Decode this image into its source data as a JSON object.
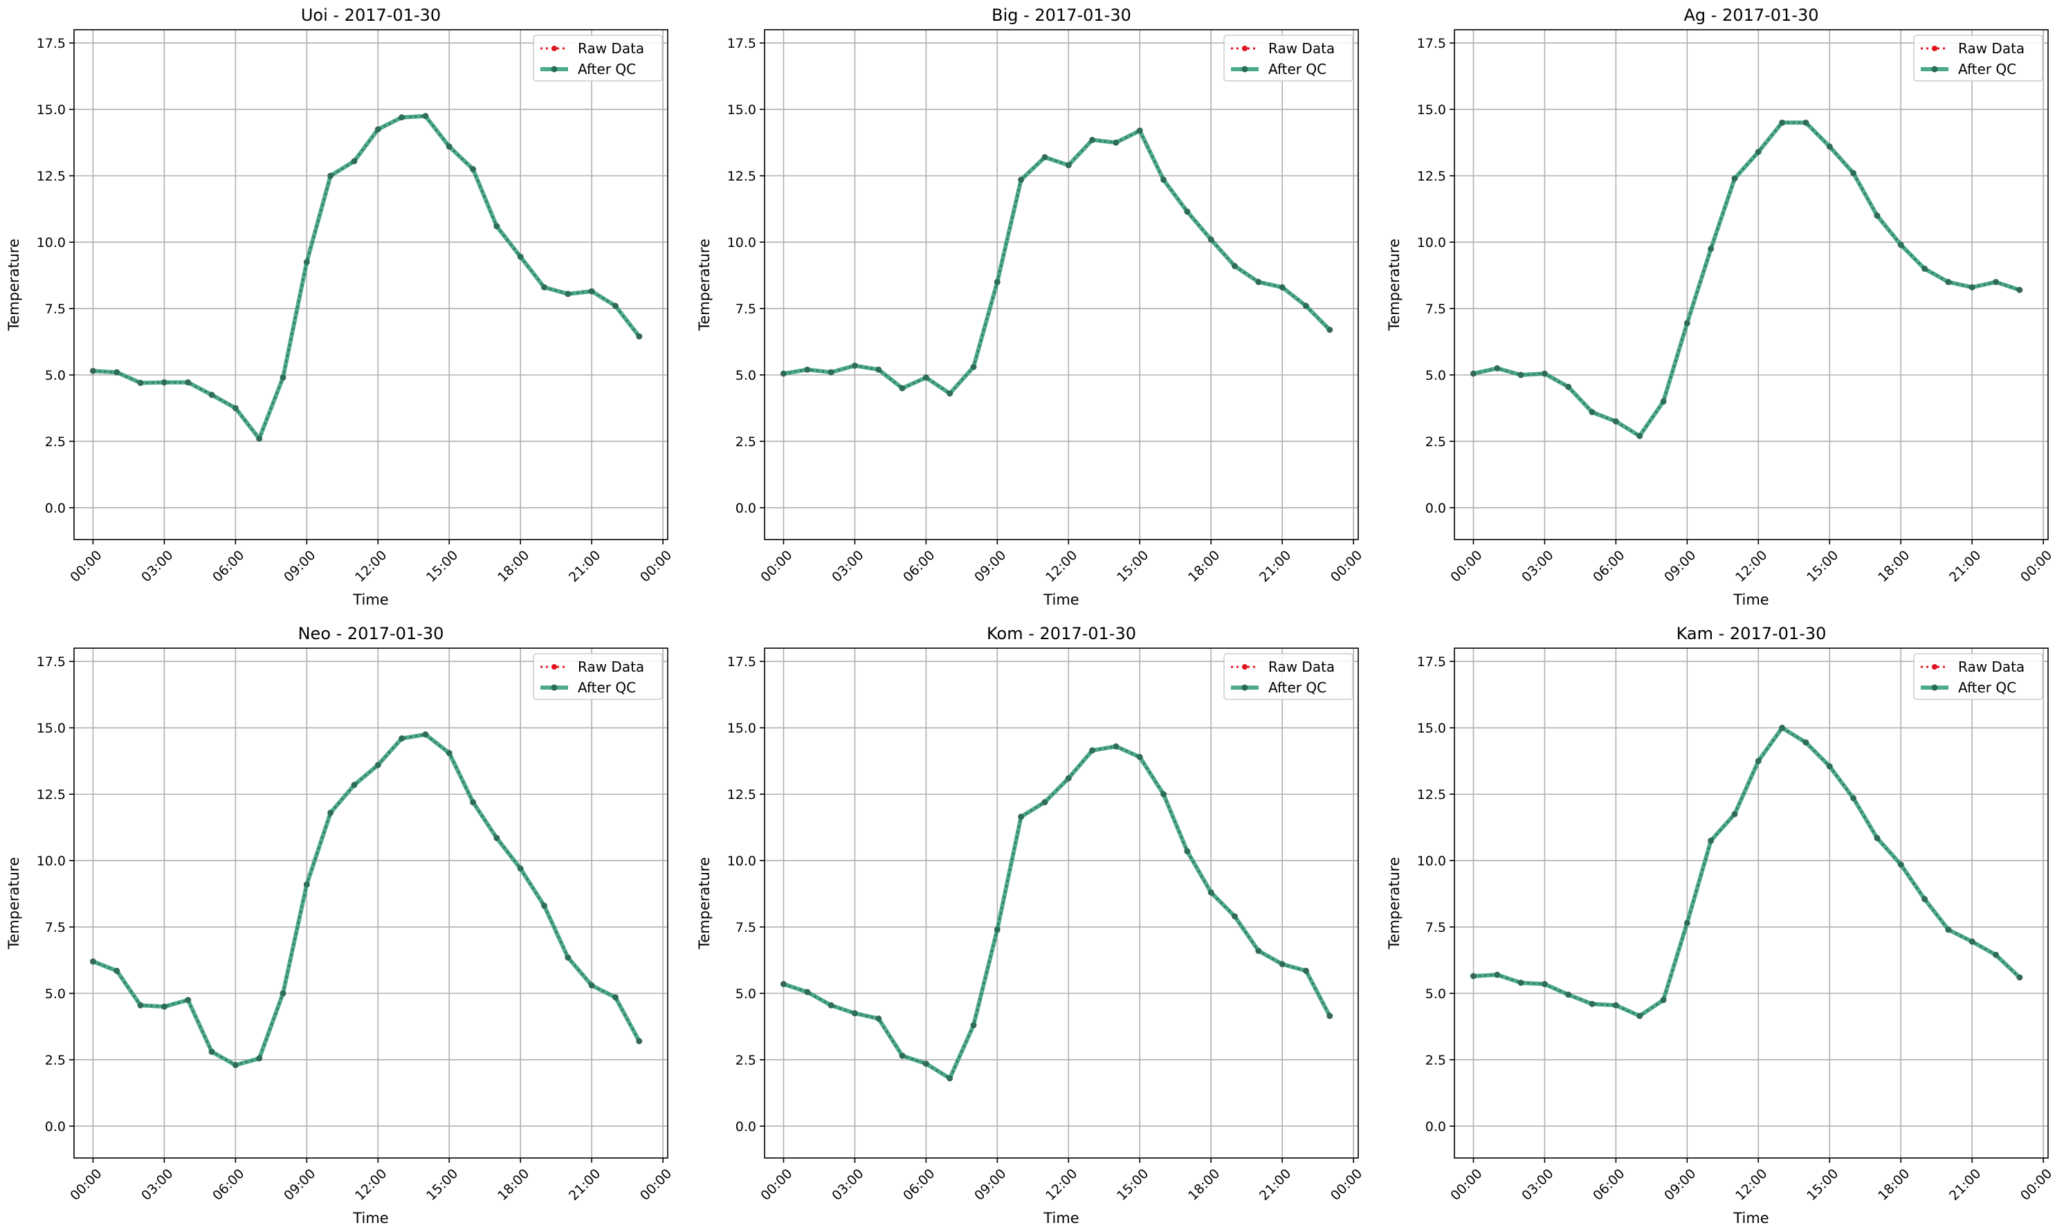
{
  "colors": {
    "raw": "#e0141e",
    "qc": "#2e9c78",
    "qc_marker": "#2a6b55",
    "grid": "#b0b0b0"
  },
  "chart_data": [
    {
      "type": "line",
      "title": "Uoi - 2017-01-30",
      "xlabel": "Time",
      "ylabel": "Temperature",
      "x_ticks": [
        "00:00",
        "03:00",
        "06:00",
        "09:00",
        "12:00",
        "15:00",
        "18:00",
        "21:00",
        "00:00"
      ],
      "y_ticks": [
        "0.0",
        "2.5",
        "5.0",
        "7.5",
        "10.0",
        "12.5",
        "15.0",
        "17.5"
      ],
      "ylim": [
        -1.2,
        18.0
      ],
      "grid": true,
      "legend": "top-right",
      "series": [
        {
          "name": "Raw Data",
          "values": [
            5.15,
            5.1,
            4.7,
            4.72,
            4.72,
            4.25,
            3.75,
            2.6,
            4.9,
            9.25,
            12.5,
            13.05,
            14.25,
            14.7,
            14.75,
            13.6,
            12.75,
            10.6,
            9.45,
            8.3,
            8.05,
            8.15,
            7.6,
            6.45
          ]
        },
        {
          "name": "After QC",
          "values": [
            5.15,
            5.1,
            4.7,
            4.72,
            4.72,
            4.25,
            3.75,
            2.6,
            4.9,
            9.25,
            12.5,
            13.05,
            14.25,
            14.7,
            14.75,
            13.6,
            12.75,
            10.6,
            9.45,
            8.3,
            8.05,
            8.15,
            7.6,
            6.45
          ]
        }
      ]
    },
    {
      "type": "line",
      "title": "Big - 2017-01-30",
      "xlabel": "Time",
      "ylabel": "Temperature",
      "x_ticks": [
        "00:00",
        "03:00",
        "06:00",
        "09:00",
        "12:00",
        "15:00",
        "18:00",
        "21:00",
        "00:00"
      ],
      "y_ticks": [
        "0.0",
        "2.5",
        "5.0",
        "7.5",
        "10.0",
        "12.5",
        "15.0",
        "17.5"
      ],
      "ylim": [
        -1.2,
        18.0
      ],
      "grid": true,
      "legend": "top-right",
      "series": [
        {
          "name": "Raw Data",
          "values": [
            5.05,
            5.2,
            5.1,
            5.35,
            5.2,
            4.5,
            4.9,
            4.3,
            5.3,
            8.5,
            12.35,
            13.2,
            12.9,
            13.85,
            13.75,
            14.2,
            12.35,
            11.15,
            10.1,
            9.1,
            8.5,
            8.3,
            7.6,
            6.7
          ]
        },
        {
          "name": "After QC",
          "values": [
            5.05,
            5.2,
            5.1,
            5.35,
            5.2,
            4.5,
            4.9,
            4.3,
            5.3,
            8.5,
            12.35,
            13.2,
            12.9,
            13.85,
            13.75,
            14.2,
            12.35,
            11.15,
            10.1,
            9.1,
            8.5,
            8.3,
            7.6,
            6.7
          ]
        }
      ]
    },
    {
      "type": "line",
      "title": "Ag - 2017-01-30",
      "xlabel": "Time",
      "ylabel": "Temperature",
      "x_ticks": [
        "00:00",
        "03:00",
        "06:00",
        "09:00",
        "12:00",
        "15:00",
        "18:00",
        "21:00",
        "00:00"
      ],
      "y_ticks": [
        "0.0",
        "2.5",
        "5.0",
        "7.5",
        "10.0",
        "12.5",
        "15.0",
        "17.5"
      ],
      "ylim": [
        -1.2,
        18.0
      ],
      "grid": true,
      "legend": "top-right",
      "series": [
        {
          "name": "Raw Data",
          "values": [
            5.05,
            5.25,
            5.0,
            5.05,
            4.55,
            3.6,
            3.25,
            2.7,
            4.0,
            6.95,
            9.75,
            12.4,
            13.4,
            14.5,
            14.5,
            13.6,
            12.6,
            11.0,
            9.9,
            9.0,
            8.5,
            8.3,
            8.5,
            8.2
          ]
        },
        {
          "name": "After QC",
          "values": [
            5.05,
            5.25,
            5.0,
            5.05,
            4.55,
            3.6,
            3.25,
            2.7,
            4.0,
            6.95,
            9.75,
            12.4,
            13.4,
            14.5,
            14.5,
            13.6,
            12.6,
            11.0,
            9.9,
            9.0,
            8.5,
            8.3,
            8.5,
            8.2
          ]
        }
      ]
    },
    {
      "type": "line",
      "title": "Neo - 2017-01-30",
      "xlabel": "Time",
      "ylabel": "Temperature",
      "x_ticks": [
        "00:00",
        "03:00",
        "06:00",
        "09:00",
        "12:00",
        "15:00",
        "18:00",
        "21:00",
        "00:00"
      ],
      "y_ticks": [
        "0.0",
        "2.5",
        "5.0",
        "7.5",
        "10.0",
        "12.5",
        "15.0",
        "17.5"
      ],
      "ylim": [
        -1.2,
        18.0
      ],
      "grid": true,
      "legend": "top-right",
      "series": [
        {
          "name": "Raw Data",
          "values": [
            6.2,
            5.85,
            4.55,
            4.5,
            4.75,
            2.8,
            2.3,
            2.55,
            5.0,
            9.1,
            11.8,
            12.85,
            13.6,
            14.6,
            14.75,
            14.05,
            12.2,
            10.85,
            9.7,
            8.3,
            6.35,
            5.3,
            4.85,
            3.2
          ]
        },
        {
          "name": "After QC",
          "values": [
            6.2,
            5.85,
            4.55,
            4.5,
            4.75,
            2.8,
            2.3,
            2.55,
            5.0,
            9.1,
            11.8,
            12.85,
            13.6,
            14.6,
            14.75,
            14.05,
            12.2,
            10.85,
            9.7,
            8.3,
            6.35,
            5.3,
            4.85,
            3.2
          ]
        }
      ]
    },
    {
      "type": "line",
      "title": "Kom - 2017-01-30",
      "xlabel": "Time",
      "ylabel": "Temperature",
      "x_ticks": [
        "00:00",
        "03:00",
        "06:00",
        "09:00",
        "12:00",
        "15:00",
        "18:00",
        "21:00",
        "00:00"
      ],
      "y_ticks": [
        "0.0",
        "2.5",
        "5.0",
        "7.5",
        "10.0",
        "12.5",
        "15.0",
        "17.5"
      ],
      "ylim": [
        -1.2,
        18.0
      ],
      "grid": true,
      "legend": "top-right",
      "series": [
        {
          "name": "Raw Data",
          "values": [
            5.35,
            5.05,
            4.55,
            4.25,
            4.05,
            2.65,
            2.35,
            1.8,
            3.8,
            7.4,
            11.65,
            12.2,
            13.1,
            14.15,
            14.3,
            13.9,
            12.5,
            10.35,
            8.8,
            7.9,
            6.6,
            6.1,
            5.85,
            4.15
          ]
        },
        {
          "name": "After QC",
          "values": [
            5.35,
            5.05,
            4.55,
            4.25,
            4.05,
            2.65,
            2.35,
            1.8,
            3.8,
            7.4,
            11.65,
            12.2,
            13.1,
            14.15,
            14.3,
            13.9,
            12.5,
            10.35,
            8.8,
            7.9,
            6.6,
            6.1,
            5.85,
            4.15
          ]
        }
      ]
    },
    {
      "type": "line",
      "title": "Kam - 2017-01-30",
      "xlabel": "Time",
      "ylabel": "Temperature",
      "x_ticks": [
        "00:00",
        "03:00",
        "06:00",
        "09:00",
        "12:00",
        "15:00",
        "18:00",
        "21:00",
        "00:00"
      ],
      "y_ticks": [
        "0.0",
        "2.5",
        "5.0",
        "7.5",
        "10.0",
        "12.5",
        "15.0",
        "17.5"
      ],
      "ylim": [
        -1.2,
        18.0
      ],
      "grid": true,
      "legend": "top-right",
      "series": [
        {
          "name": "Raw Data",
          "values": [
            5.65,
            5.7,
            5.4,
            5.35,
            4.95,
            4.6,
            4.55,
            4.15,
            4.75,
            7.65,
            10.75,
            11.75,
            13.75,
            15.0,
            14.45,
            13.55,
            12.35,
            10.85,
            9.85,
            8.55,
            7.4,
            6.95,
            6.45,
            5.6
          ]
        },
        {
          "name": "After QC",
          "values": [
            5.65,
            5.7,
            5.4,
            5.35,
            4.95,
            4.6,
            4.55,
            4.15,
            4.75,
            7.65,
            10.75,
            11.75,
            13.75,
            15.0,
            14.45,
            13.55,
            12.35,
            10.85,
            9.85,
            8.55,
            7.4,
            6.95,
            6.45,
            5.6
          ]
        }
      ]
    }
  ]
}
